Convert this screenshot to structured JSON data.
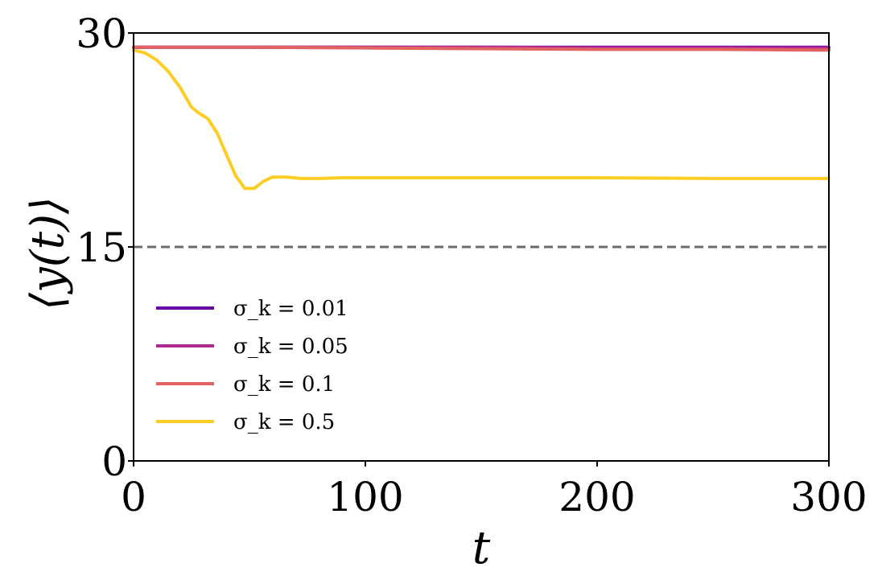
{
  "chart_data": {
    "type": "line",
    "title": "",
    "xlabel": "t",
    "ylabel": "⟨y(t)⟩",
    "xlim": [
      0,
      300
    ],
    "ylim": [
      0,
      30
    ],
    "xticks": [
      "0",
      "100",
      "200",
      "300"
    ],
    "yticks": [
      "0",
      "15",
      "30"
    ],
    "grid": false,
    "legend_position": "lower-left",
    "reference_line": {
      "y": 15,
      "style": "dashed",
      "color": "#6b6b6b"
    },
    "series": [
      {
        "name": "σ_k = 0.01",
        "color": "#6a00a8",
        "x": [
          0,
          50,
          100,
          150,
          200,
          250,
          300
        ],
        "y": [
          29.0,
          29.0,
          29.0,
          29.0,
          29.0,
          29.0,
          29.0
        ]
      },
      {
        "name": "σ_k = 0.05",
        "color": "#b12a90",
        "x": [
          0,
          50,
          100,
          150,
          200,
          250,
          300
        ],
        "y": [
          29.0,
          29.0,
          29.0,
          29.0,
          28.95,
          28.95,
          28.95
        ]
      },
      {
        "name": "σ_k = 0.1",
        "color": "#e16462",
        "x": [
          0,
          50,
          100,
          150,
          200,
          250,
          300
        ],
        "y": [
          29.0,
          29.0,
          28.95,
          28.9,
          28.85,
          28.85,
          28.8
        ]
      },
      {
        "name": "σ_k = 0.5",
        "color": "#fccd25",
        "x": [
          0,
          5,
          10,
          15,
          20,
          25,
          28,
          32,
          36,
          40,
          44,
          48,
          52,
          56,
          60,
          66,
          72,
          80,
          90,
          100,
          150,
          200,
          250,
          300
        ],
        "y": [
          28.8,
          28.6,
          28.1,
          27.3,
          26.2,
          24.8,
          24.4,
          24.0,
          23.0,
          21.5,
          20.0,
          19.1,
          19.1,
          19.6,
          19.9,
          19.9,
          19.8,
          19.8,
          19.85,
          19.85,
          19.85,
          19.85,
          19.8,
          19.8
        ]
      }
    ]
  }
}
